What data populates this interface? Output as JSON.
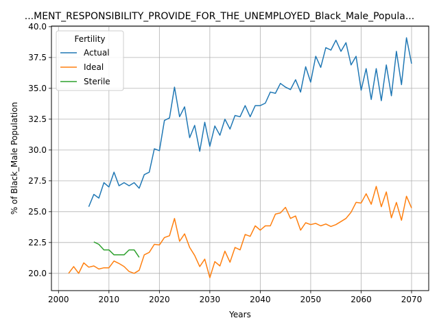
{
  "chart_data": {
    "type": "line",
    "title": "...MENT_RESPONSIBILITY_PROVIDE_FOR_THE_UNEMPLOYED_Black_Male_Popula...",
    "xlabel": "Years",
    "ylabel": "% of Black_Male Population",
    "xlim": [
      1998.6,
      2073.4
    ],
    "ylim": [
      18.6,
      40.05
    ],
    "xticks": [
      2000,
      2010,
      2020,
      2030,
      2040,
      2050,
      2060,
      2070
    ],
    "yticks": [
      20.0,
      22.5,
      25.0,
      27.5,
      30.0,
      32.5,
      35.0,
      37.5,
      40.0
    ],
    "grid": true,
    "legend": {
      "title": "Fertility",
      "placement": "upper-left"
    },
    "series": [
      {
        "name": "Actual",
        "color": "#1f77b4",
        "x": [
          2006,
          2007,
          2008,
          2009,
          2010,
          2011,
          2012,
          2013,
          2014,
          2015,
          2016,
          2017,
          2018,
          2019,
          2020,
          2021,
          2022,
          2023,
          2024,
          2025,
          2026,
          2027,
          2028,
          2029,
          2030,
          2031,
          2032,
          2033,
          2034,
          2035,
          2036,
          2037,
          2038,
          2039,
          2040,
          2041,
          2042,
          2043,
          2044,
          2045,
          2046,
          2047,
          2048,
          2049,
          2050,
          2051,
          2052,
          2053,
          2054,
          2055,
          2056,
          2057,
          2058,
          2059,
          2060,
          2061,
          2062,
          2063,
          2064,
          2065,
          2066,
          2067,
          2068,
          2069,
          2070
        ],
        "y": [
          25.4,
          26.4,
          26.1,
          27.35,
          27.0,
          28.2,
          27.1,
          27.35,
          27.1,
          27.35,
          26.9,
          28.0,
          28.2,
          30.1,
          29.95,
          32.4,
          32.6,
          35.1,
          32.7,
          33.5,
          31.0,
          32.0,
          29.9,
          32.25,
          30.3,
          31.95,
          31.2,
          32.5,
          31.7,
          32.8,
          32.7,
          33.6,
          32.7,
          33.6,
          33.6,
          33.8,
          34.7,
          34.6,
          35.4,
          35.1,
          34.9,
          35.7,
          34.7,
          36.75,
          35.5,
          37.6,
          36.7,
          38.3,
          38.1,
          38.9,
          38.0,
          38.7,
          36.9,
          37.6,
          34.85,
          36.6,
          34.1,
          36.6,
          34.0,
          36.9,
          34.4,
          38.0,
          35.3,
          39.1,
          37.0
        ]
      },
      {
        "name": "Ideal",
        "color": "#ff7f0e",
        "x": [
          2002,
          2003,
          2004,
          2005,
          2006,
          2007,
          2008,
          2009,
          2010,
          2011,
          2012,
          2013,
          2014,
          2015,
          2016,
          2017,
          2018,
          2019,
          2020,
          2021,
          2022,
          2023,
          2024,
          2025,
          2026,
          2027,
          2028,
          2029,
          2030,
          2031,
          2032,
          2033,
          2034,
          2035,
          2036,
          2037,
          2038,
          2039,
          2040,
          2041,
          2042,
          2043,
          2044,
          2045,
          2046,
          2047,
          2048,
          2049,
          2050,
          2051,
          2052,
          2053,
          2054,
          2055,
          2056,
          2057,
          2058,
          2059,
          2060,
          2061,
          2062,
          2063,
          2064,
          2065,
          2066,
          2067,
          2068,
          2069,
          2070
        ],
        "y": [
          20.0,
          20.55,
          20.0,
          20.85,
          20.5,
          20.6,
          20.35,
          20.45,
          20.45,
          21.0,
          20.8,
          20.55,
          20.15,
          20.0,
          20.25,
          21.5,
          21.7,
          22.35,
          22.3,
          22.9,
          23.05,
          24.45,
          22.6,
          23.2,
          22.1,
          21.45,
          20.55,
          21.15,
          19.65,
          20.95,
          20.6,
          21.8,
          20.9,
          22.1,
          21.9,
          23.15,
          23.0,
          23.85,
          23.5,
          23.85,
          23.85,
          24.8,
          24.9,
          25.35,
          24.45,
          24.65,
          23.5,
          24.1,
          23.95,
          24.05,
          23.85,
          24.0,
          23.8,
          23.95,
          24.2,
          24.45,
          24.95,
          25.75,
          25.7,
          26.45,
          25.6,
          27.05,
          25.4,
          26.6,
          24.5,
          25.75,
          24.3,
          26.25,
          25.3
        ]
      },
      {
        "name": "Sterile",
        "color": "#2ca02c",
        "x": [
          2007,
          2008,
          2009,
          2010,
          2011,
          2012,
          2013,
          2014,
          2015,
          2016
        ],
        "y": [
          22.55,
          22.35,
          21.9,
          21.9,
          21.5,
          21.5,
          21.5,
          21.9,
          21.9,
          21.3
        ]
      }
    ]
  }
}
